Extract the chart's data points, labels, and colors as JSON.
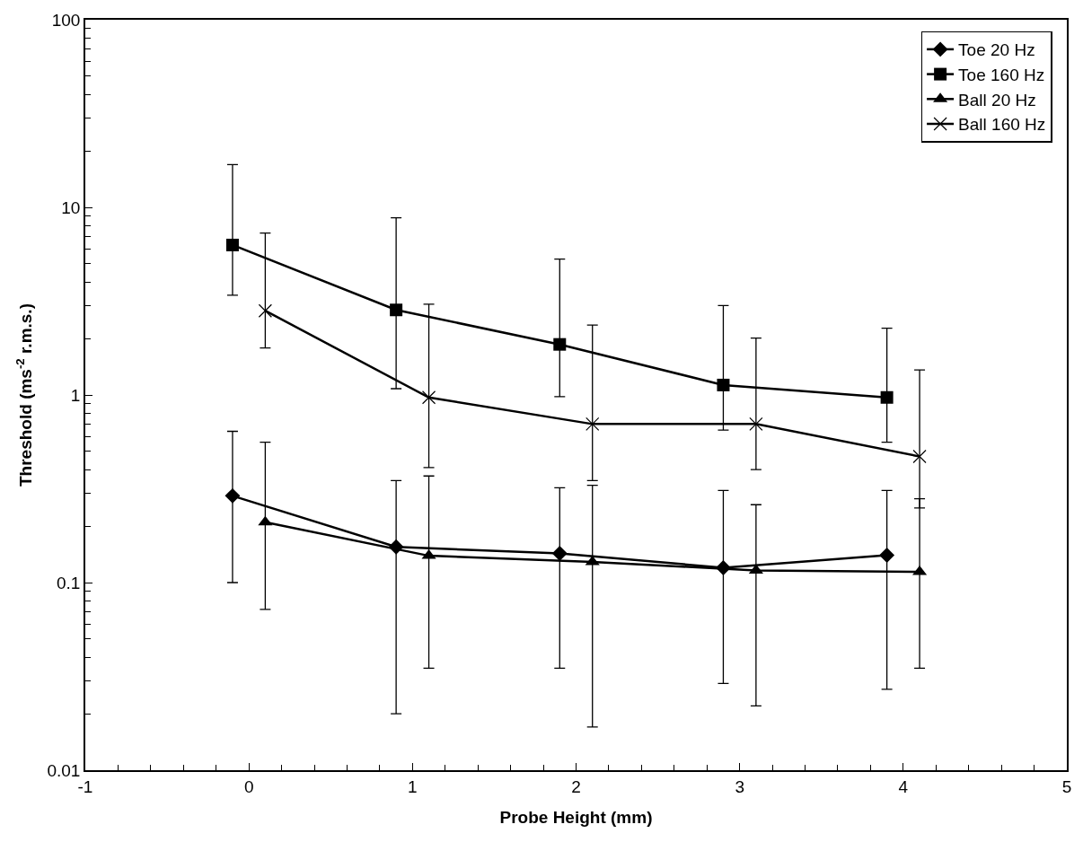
{
  "chart_data": {
    "type": "line",
    "xlabel": "Probe Height (mm)",
    "ylabel": "Threshold (ms$^{-2}$ r.m.s.)",
    "log": "y",
    "xlim": [
      -1,
      5
    ],
    "xticks": [
      -1,
      0,
      1,
      2,
      3,
      4,
      5
    ],
    "ylim": [
      0.01,
      100
    ],
    "yticks": [
      0.01,
      0.1,
      1,
      10,
      100
    ],
    "grid": false,
    "legend": "top right",
    "line_style": "solid",
    "series": [
      {
        "name": "Toe 20 Hz",
        "color": "#000000",
        "marker": "diamond",
        "x": [
          -0.1,
          0.9,
          1.9,
          2.9,
          3.9
        ],
        "values": [
          0.29,
          0.155,
          0.143,
          0.12,
          0.14
        ],
        "errors": [
          [
            0.1,
            0.64
          ],
          [
            0.02,
            0.35
          ],
          [
            0.035,
            0.32
          ],
          [
            0.029,
            0.31
          ],
          [
            0.027,
            0.31
          ]
        ]
      },
      {
        "name": "Toe 160 Hz",
        "color": "#000000",
        "marker": "square",
        "x": [
          -0.1,
          0.9,
          1.9,
          2.9,
          3.9
        ],
        "values": [
          6.3,
          2.84,
          1.86,
          1.13,
          0.97
        ],
        "errors": [
          [
            3.4,
            16.9
          ],
          [
            1.08,
            8.8
          ],
          [
            0.98,
            5.3
          ],
          [
            0.65,
            3.0
          ],
          [
            0.56,
            2.27
          ]
        ]
      },
      {
        "name": "Ball 20 Hz",
        "color": "#000000",
        "marker": "triangle",
        "x": [
          0.1,
          1.1,
          2.1,
          3.1,
          4.1
        ],
        "values": [
          0.21,
          0.139,
          0.129,
          0.116,
          0.114
        ],
        "errors": [
          [
            0.072,
            0.56
          ],
          [
            0.035,
            0.37
          ],
          [
            0.017,
            0.33
          ],
          [
            0.022,
            0.26
          ],
          [
            0.035,
            0.28
          ]
        ]
      },
      {
        "name": "Ball 160 Hz",
        "color": "#000000",
        "marker": "cross",
        "x": [
          0.1,
          1.1,
          2.1,
          3.1,
          4.1
        ],
        "values": [
          2.81,
          0.97,
          0.7,
          0.7,
          0.47
        ],
        "errors": [
          [
            1.78,
            7.3
          ],
          [
            0.41,
            3.05
          ],
          [
            0.35,
            2.36
          ],
          [
            0.4,
            2.01
          ],
          [
            0.25,
            1.36
          ]
        ]
      }
    ]
  }
}
